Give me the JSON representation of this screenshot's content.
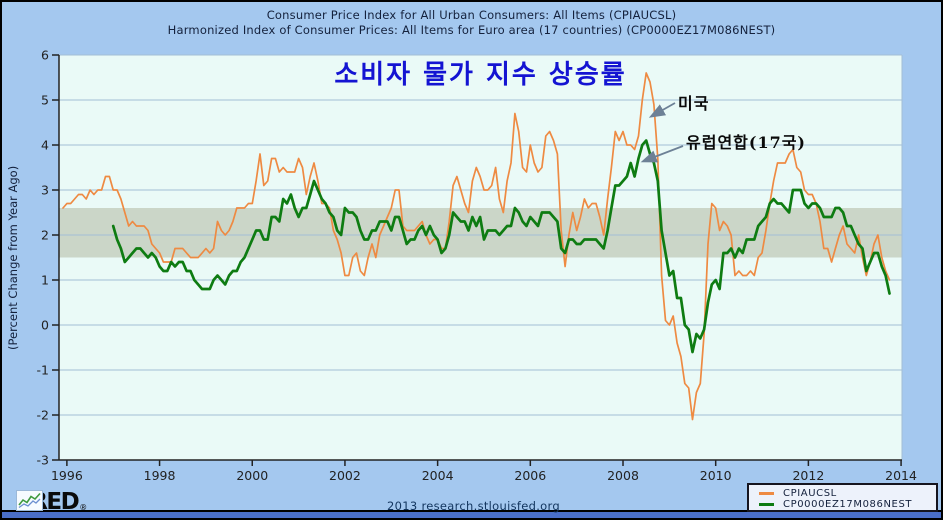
{
  "header": {
    "title_line1": "Consumer Price Index for All Urban Consumers: All Items (CPIAUCSL)",
    "title_line2": "Harmonized Index of Consumer Prices: All Items for Euro area (17 countries) (CP0000EZ17M086NEST)"
  },
  "overlay": {
    "main_title": "소비자 물가 지수 상승률",
    "annotation_us": "미국",
    "annotation_eu": "유럽연합(17국)"
  },
  "footer": {
    "credit": "2013 research.stlouisfed.org",
    "logo_text": "FRED",
    "logo_mark": "®"
  },
  "chart_data": {
    "type": "line",
    "title": "Consumer Price Index for All Urban Consumers: All Items (CPIAUCSL)",
    "subtitle": "Harmonized Index of Consumer Prices: All Items for Euro area (17 countries) (CP0000EZ17M086NEST)",
    "xlabel": "",
    "ylabel": "(Percent Change from Year Ago)",
    "ylim": [
      -3,
      6
    ],
    "xlim": [
      1995.83,
      2014.02
    ],
    "x_ticks": [
      1996,
      1998,
      2000,
      2002,
      2004,
      2006,
      2008,
      2010,
      2012,
      2014
    ],
    "y_ticks": [
      -3,
      -2,
      -1,
      0,
      1,
      2,
      3,
      4,
      5,
      6
    ],
    "grid": true,
    "legend_position": "bottom-right",
    "shaded_band": {
      "from": 1.5,
      "to": 2.6,
      "color": "#cbd6c8"
    },
    "colors": {
      "canvas": "#a4c8ef",
      "plot_bg": "#eafaf7",
      "grid": "#a3bed6",
      "axis": "#222222",
      "title_text": "#14213c",
      "korean_title": "#1414d2",
      "arrow": "#6d8196",
      "bottom_strip": "#4a6fc9"
    },
    "series": [
      {
        "name": "CPIAUCSL",
        "label_korean": "미국",
        "color": "#ee8a42",
        "frequency": "monthly",
        "start_year": 1995.9167,
        "values": [
          2.6,
          2.7,
          2.7,
          2.8,
          2.9,
          2.9,
          2.8,
          3.0,
          2.9,
          3.0,
          3.0,
          3.3,
          3.3,
          3.0,
          3.0,
          2.8,
          2.5,
          2.2,
          2.3,
          2.2,
          2.2,
          2.2,
          2.1,
          1.8,
          1.7,
          1.6,
          1.4,
          1.4,
          1.4,
          1.7,
          1.7,
          1.7,
          1.6,
          1.5,
          1.5,
          1.5,
          1.6,
          1.7,
          1.6,
          1.7,
          2.3,
          2.1,
          2.0,
          2.1,
          2.3,
          2.6,
          2.6,
          2.6,
          2.7,
          2.7,
          3.2,
          3.8,
          3.1,
          3.2,
          3.7,
          3.7,
          3.4,
          3.5,
          3.4,
          3.4,
          3.4,
          3.7,
          3.5,
          2.9,
          3.3,
          3.6,
          3.2,
          2.7,
          2.7,
          2.6,
          2.1,
          1.9,
          1.6,
          1.1,
          1.1,
          1.5,
          1.6,
          1.2,
          1.1,
          1.5,
          1.8,
          1.5,
          2.0,
          2.2,
          2.4,
          2.6,
          3.0,
          3.0,
          2.2,
          2.1,
          2.1,
          2.1,
          2.2,
          2.3,
          2.0,
          1.8,
          1.9,
          1.9,
          1.7,
          1.7,
          2.3,
          3.1,
          3.3,
          3.0,
          2.7,
          2.5,
          3.2,
          3.5,
          3.3,
          3.0,
          3.0,
          3.1,
          3.5,
          2.8,
          2.5,
          3.2,
          3.6,
          4.7,
          4.3,
          3.5,
          3.4,
          4.0,
          3.6,
          3.4,
          3.5,
          4.2,
          4.3,
          4.1,
          3.8,
          2.1,
          1.3,
          2.0,
          2.5,
          2.1,
          2.4,
          2.8,
          2.6,
          2.7,
          2.7,
          2.4,
          2.0,
          2.8,
          3.5,
          4.3,
          4.1,
          4.3,
          4.0,
          4.0,
          3.9,
          4.2,
          5.0,
          5.6,
          5.4,
          4.9,
          3.7,
          1.1,
          0.1,
          0.0,
          0.2,
          -0.4,
          -0.7,
          -1.3,
          -1.4,
          -2.1,
          -1.5,
          -1.3,
          -0.2,
          1.8,
          2.7,
          2.6,
          2.1,
          2.3,
          2.2,
          2.0,
          1.1,
          1.2,
          1.1,
          1.1,
          1.2,
          1.1,
          1.5,
          1.6,
          2.1,
          2.7,
          3.2,
          3.6,
          3.6,
          3.6,
          3.8,
          3.9,
          3.5,
          3.4,
          3.0,
          2.9,
          2.9,
          2.7,
          2.3,
          1.7,
          1.7,
          1.4,
          1.7,
          2.0,
          2.2,
          1.8,
          1.7,
          1.6,
          2.0,
          1.5,
          1.1,
          1.4,
          1.8,
          2.0,
          1.5,
          1.2,
          1.0
        ]
      },
      {
        "name": "CP0000EZ17M086NEST",
        "label_korean": "유럽연합(17국)",
        "color": "#0e7c12",
        "frequency": "monthly",
        "start_year": 1997.0,
        "values": [
          2.2,
          1.9,
          1.7,
          1.4,
          1.5,
          1.6,
          1.7,
          1.7,
          1.6,
          1.5,
          1.6,
          1.5,
          1.3,
          1.2,
          1.2,
          1.4,
          1.3,
          1.4,
          1.4,
          1.2,
          1.2,
          1.0,
          0.9,
          0.8,
          0.8,
          0.8,
          1.0,
          1.1,
          1.0,
          0.9,
          1.1,
          1.2,
          1.2,
          1.4,
          1.5,
          1.7,
          1.9,
          2.1,
          2.1,
          1.9,
          1.9,
          2.4,
          2.4,
          2.3,
          2.8,
          2.7,
          2.9,
          2.6,
          2.4,
          2.6,
          2.6,
          2.9,
          3.2,
          3.0,
          2.8,
          2.7,
          2.5,
          2.4,
          2.1,
          2.0,
          2.6,
          2.5,
          2.5,
          2.4,
          2.1,
          1.9,
          1.9,
          2.1,
          2.1,
          2.3,
          2.3,
          2.3,
          2.1,
          2.4,
          2.4,
          2.1,
          1.8,
          1.9,
          1.9,
          2.1,
          2.2,
          2.0,
          2.2,
          2.0,
          1.9,
          1.6,
          1.7,
          2.0,
          2.5,
          2.4,
          2.3,
          2.3,
          2.1,
          2.4,
          2.2,
          2.4,
          1.9,
          2.1,
          2.1,
          2.1,
          2.0,
          2.1,
          2.2,
          2.2,
          2.6,
          2.5,
          2.3,
          2.2,
          2.4,
          2.3,
          2.2,
          2.5,
          2.5,
          2.5,
          2.4,
          2.3,
          1.7,
          1.6,
          1.9,
          1.9,
          1.8,
          1.8,
          1.9,
          1.9,
          1.9,
          1.9,
          1.8,
          1.7,
          2.1,
          2.6,
          3.1,
          3.1,
          3.2,
          3.3,
          3.6,
          3.3,
          3.7,
          4.0,
          4.1,
          3.8,
          3.6,
          3.2,
          2.1,
          1.6,
          1.1,
          1.2,
          0.6,
          0.6,
          0.0,
          -0.1,
          -0.6,
          -0.2,
          -0.3,
          -0.1,
          0.5,
          0.9,
          1.0,
          0.8,
          1.6,
          1.6,
          1.7,
          1.5,
          1.7,
          1.6,
          1.9,
          1.9,
          1.9,
          2.2,
          2.3,
          2.4,
          2.7,
          2.8,
          2.7,
          2.7,
          2.6,
          2.5,
          3.0,
          3.0,
          3.0,
          2.7,
          2.6,
          2.7,
          2.7,
          2.6,
          2.4,
          2.4,
          2.4,
          2.6,
          2.6,
          2.5,
          2.2,
          2.2,
          2.0,
          1.8,
          1.7,
          1.2,
          1.4,
          1.6,
          1.6,
          1.3,
          1.1,
          0.7
        ]
      }
    ]
  }
}
